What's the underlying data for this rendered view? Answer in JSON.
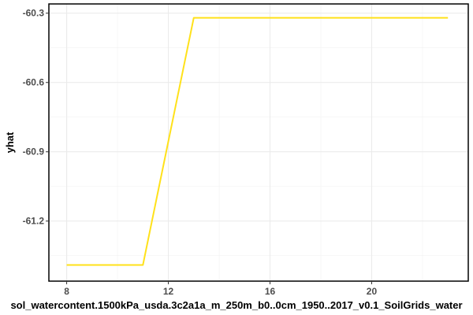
{
  "chart_data": {
    "type": "line",
    "title": "",
    "xlabel": "sol_watercontent.1500kPa_usda.3c2a1a_m_250m_b0..0cm_1950..2017_v0.1_SoilGrids_water",
    "ylabel": "yhat",
    "x_ticks": [
      8,
      12,
      16,
      20
    ],
    "x_tick_labels": [
      "8",
      "12",
      "16",
      "20"
    ],
    "y_ticks": [
      -61.2,
      -60.9,
      -60.6,
      -60.3
    ],
    "y_tick_labels": [
      "-61.2",
      "-60.9",
      "-60.6",
      "-60.3"
    ],
    "xlim": [
      7.3,
      23.8
    ],
    "ylim": [
      -61.46,
      -60.26
    ],
    "grid": true,
    "series": [
      {
        "color": "#FFE11A",
        "x": [
          8,
          11,
          13,
          23
        ],
        "y": [
          -61.39,
          -61.39,
          -60.32,
          -60.32
        ]
      }
    ]
  }
}
